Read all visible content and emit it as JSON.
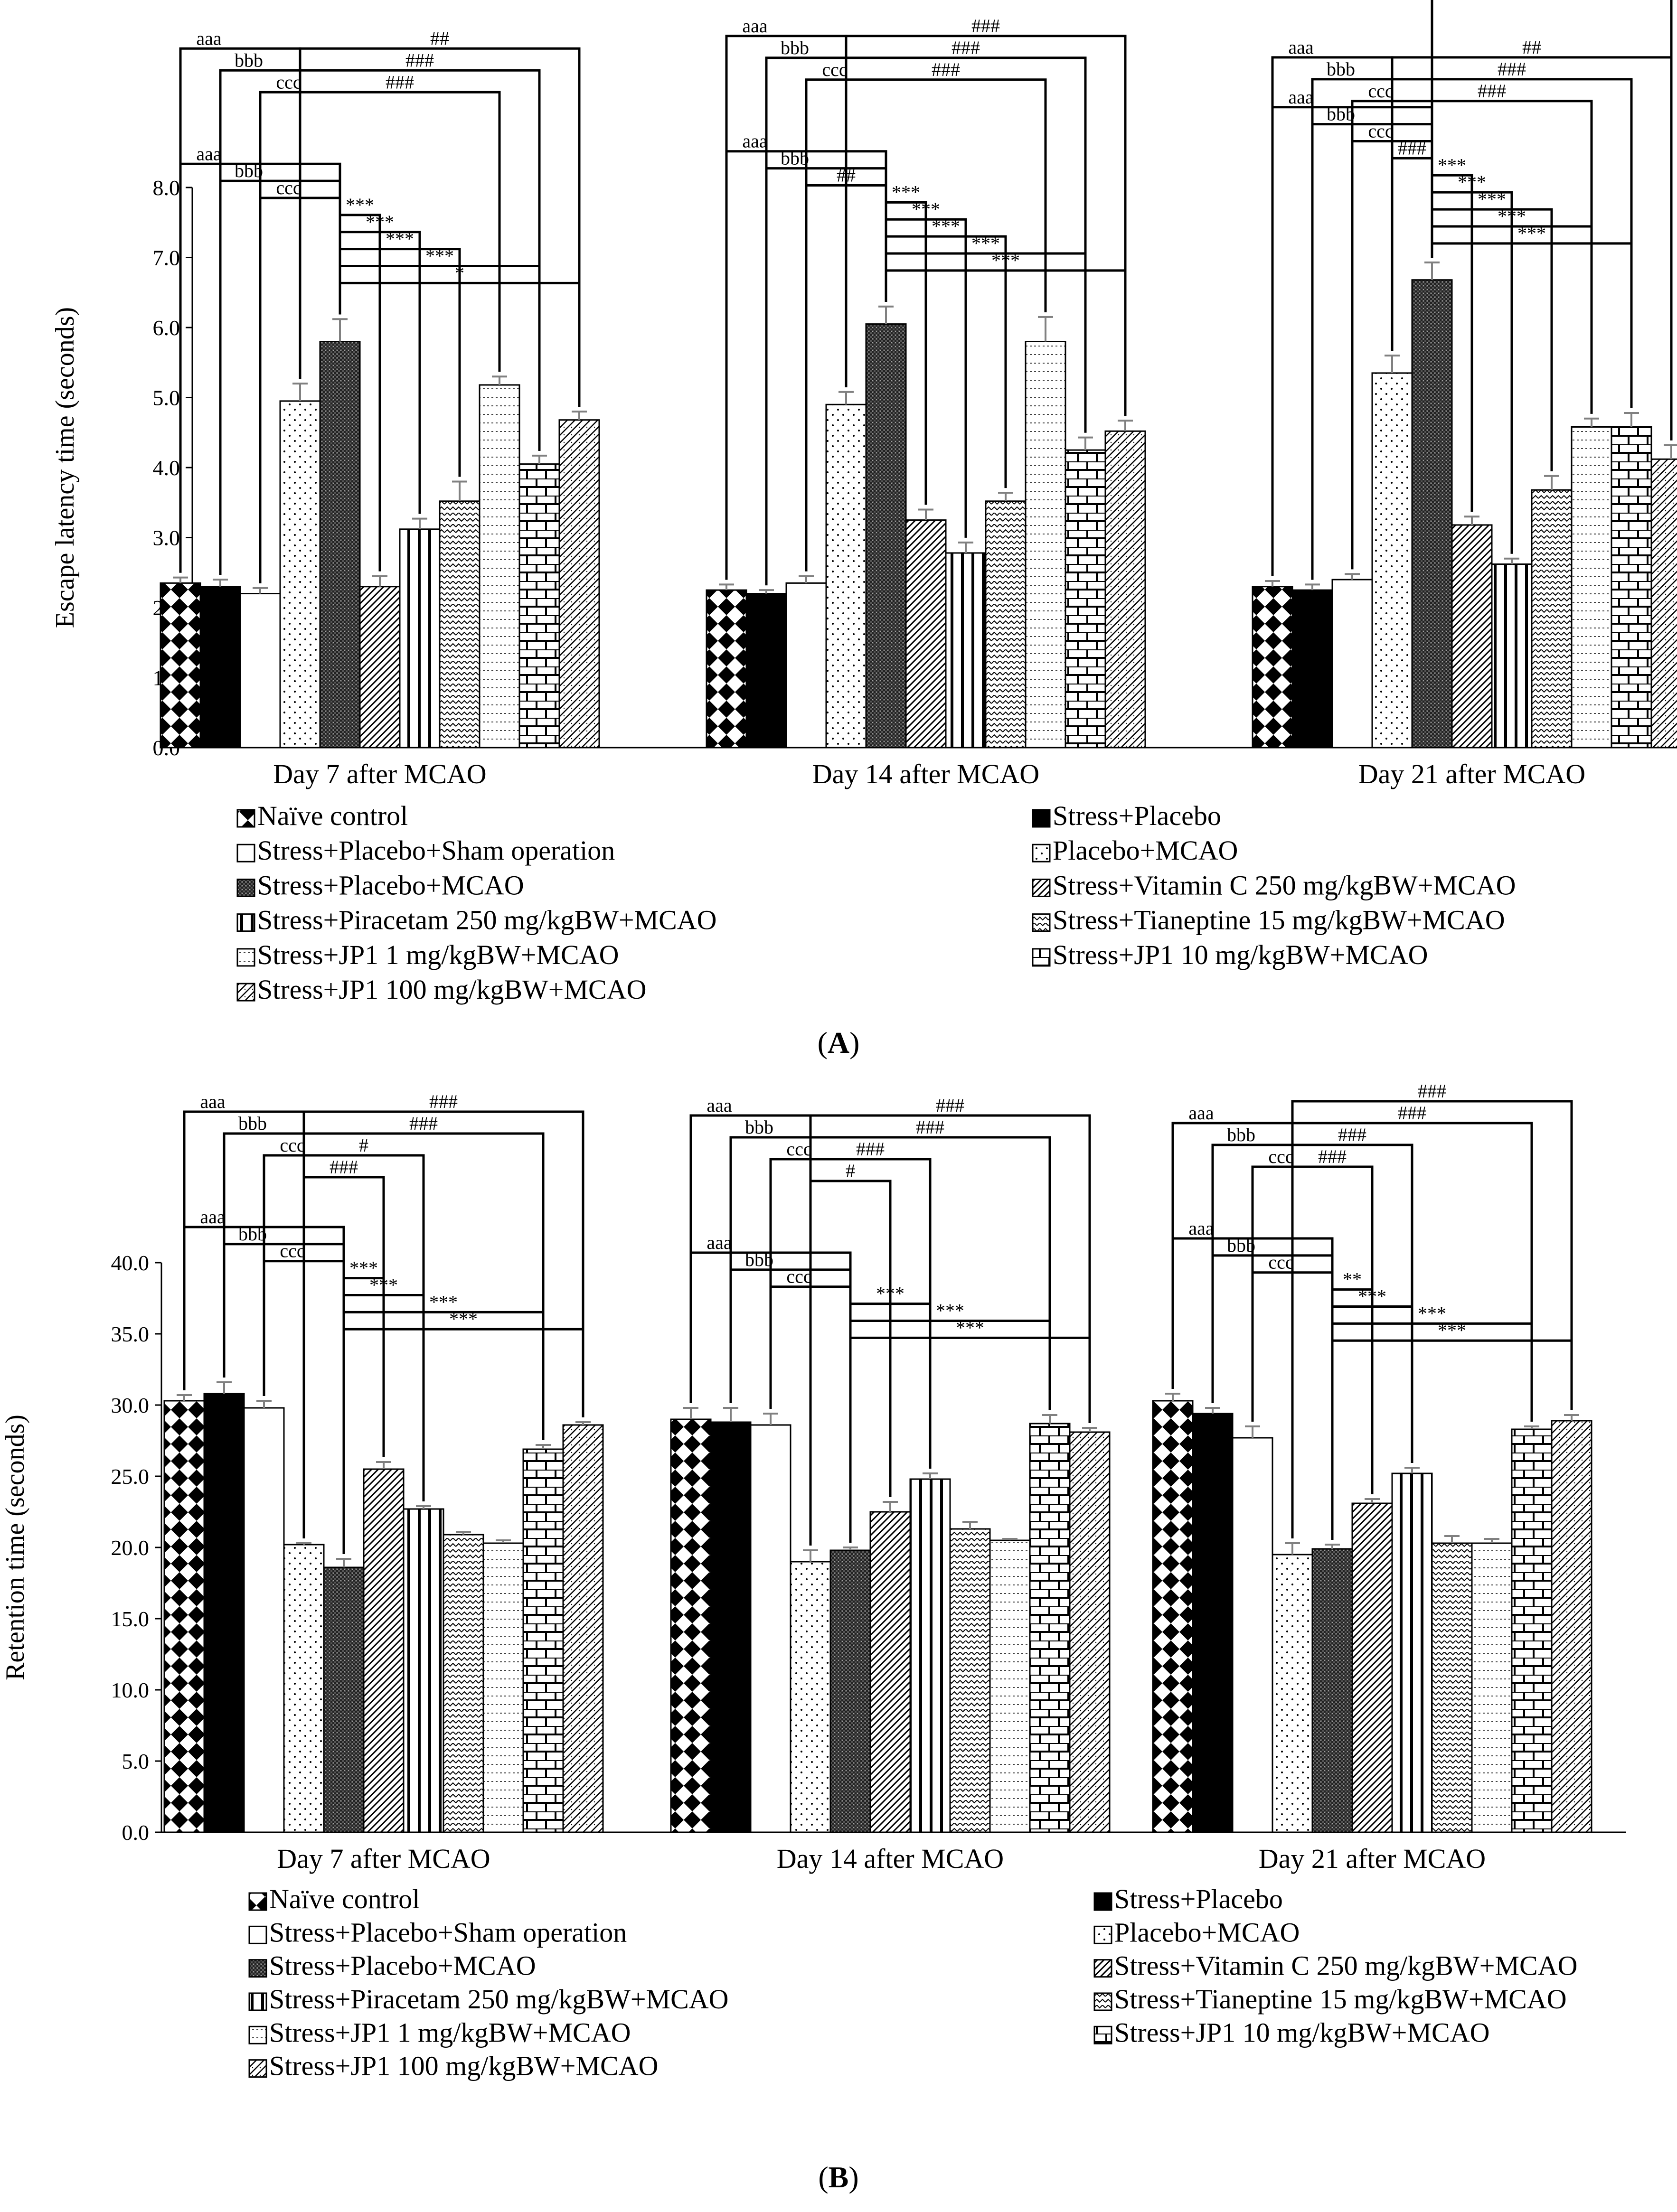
{
  "chart_data": [
    {
      "type": "bar",
      "panel_label": "A",
      "ylabel": "Escape latency time (seconds)",
      "ylim": [
        0,
        8
      ],
      "yticks": [
        "0.0",
        "1.0",
        "2.0",
        "3.0",
        "4.0",
        "5.0",
        "6.0",
        "7.0",
        "8.0"
      ],
      "categories": [
        "Day 7 after MCAO",
        "Day 14 after MCAO",
        "Day 21 after MCAO"
      ],
      "series": [
        {
          "name": "Naïve control",
          "values": [
            2.35,
            2.25,
            2.3
          ],
          "errors": [
            0.08,
            0.08,
            0.08
          ]
        },
        {
          "name": "Stress+Placebo",
          "values": [
            2.3,
            2.2,
            2.25
          ],
          "errors": [
            0.1,
            0.05,
            0.08
          ]
        },
        {
          "name": "Stress+Placebo+Sham operation",
          "values": [
            2.2,
            2.35,
            2.4
          ],
          "errors": [
            0.08,
            0.1,
            0.08
          ]
        },
        {
          "name": "Placebo+MCAO",
          "values": [
            4.95,
            4.9,
            5.35
          ],
          "errors": [
            0.25,
            0.18,
            0.25
          ]
        },
        {
          "name": "Stress+Placebo+MCAO",
          "values": [
            5.8,
            6.05,
            6.68
          ],
          "errors": [
            0.32,
            0.25,
            0.25
          ]
        },
        {
          "name": "Stress+Vitamin C 250 mg/kgBW+MCAO",
          "values": [
            2.3,
            3.25,
            3.18
          ],
          "errors": [
            0.15,
            0.15,
            0.12
          ]
        },
        {
          "name": "Stress+Piracetam 250 mg/kgBW+MCAO",
          "values": [
            3.12,
            2.78,
            2.62
          ],
          "errors": [
            0.15,
            0.15,
            0.08
          ]
        },
        {
          "name": "Stress+Tianeptine 15 mg/kgBW+MCAO",
          "values": [
            3.52,
            3.52,
            3.68
          ],
          "errors": [
            0.28,
            0.12,
            0.2
          ]
        },
        {
          "name": "Stress+JP1 1 mg/kgBW+MCAO",
          "values": [
            5.18,
            5.8,
            4.58
          ],
          "errors": [
            0.12,
            0.35,
            0.12
          ]
        },
        {
          "name": "Stress+JP1 10 mg/kgBW+MCAO",
          "values": [
            4.05,
            4.25,
            4.58
          ],
          "errors": [
            0.12,
            0.18,
            0.2
          ]
        },
        {
          "name": "Stress+JP1 100 mg/kgBW+MCAO",
          "values": [
            4.68,
            4.52,
            4.12
          ],
          "errors": [
            0.12,
            0.15,
            0.2
          ]
        }
      ],
      "annotations": [
        {
          "group": 0,
          "from": 0,
          "to": 4,
          "label": "aaa",
          "level": 0
        },
        {
          "group": 0,
          "from": 1,
          "to": 4,
          "label": "bbb",
          "level": 1
        },
        {
          "group": 0,
          "from": 2,
          "to": 4,
          "label": "ccc",
          "level": 2
        },
        {
          "group": 0,
          "from": 4,
          "to": 5,
          "label": "***",
          "level": 3
        },
        {
          "group": 0,
          "from": 4,
          "to": 6,
          "label": "***",
          "level": 4
        },
        {
          "group": 0,
          "from": 4,
          "to": 7,
          "label": "***",
          "level": 5
        },
        {
          "group": 0,
          "from": 4,
          "to": 9,
          "label": "***",
          "level": 6
        },
        {
          "group": 0,
          "from": 4,
          "to": 10,
          "label": "*",
          "level": 7
        },
        {
          "group": 0,
          "from": 0,
          "to": 3,
          "label": "aaa",
          "level": 10
        },
        {
          "group": 0,
          "from": 1,
          "to": 3,
          "label": "bbb",
          "level": 11
        },
        {
          "group": 0,
          "from": 2,
          "to": 3,
          "label": "ccc",
          "level": 12
        },
        {
          "group": 0,
          "from": 3,
          "to": 8,
          "label": "###",
          "level": 12
        },
        {
          "group": 0,
          "from": 3,
          "to": 9,
          "label": "###",
          "level": 11
        },
        {
          "group": 0,
          "from": 3,
          "to": 10,
          "label": "##",
          "level": 10
        },
        {
          "group": 1,
          "from": 0,
          "to": 4,
          "label": "aaa",
          "level": 0
        },
        {
          "group": 1,
          "from": 1,
          "to": 4,
          "label": "bbb",
          "level": 1
        },
        {
          "group": 1,
          "from": 2,
          "to": 4,
          "label": "##",
          "level": 2
        },
        {
          "group": 1,
          "from": 4,
          "to": 5,
          "label": "***",
          "level": 3
        },
        {
          "group": 1,
          "from": 4,
          "to": 6,
          "label": "***",
          "level": 4
        },
        {
          "group": 1,
          "from": 4,
          "to": 7,
          "label": "***",
          "level": 5
        },
        {
          "group": 1,
          "from": 4,
          "to": 9,
          "label": "***",
          "level": 6
        },
        {
          "group": 1,
          "from": 4,
          "to": 10,
          "label": "***",
          "level": 7
        },
        {
          "group": 1,
          "from": 0,
          "to": 3,
          "label": "aaa",
          "level": 10
        },
        {
          "group": 1,
          "from": 1,
          "to": 3,
          "label": "bbb",
          "level": 11
        },
        {
          "group": 1,
          "from": 2,
          "to": 3,
          "label": "ccc",
          "level": 12
        },
        {
          "group": 1,
          "from": 3,
          "to": 8,
          "label": "###",
          "level": 12
        },
        {
          "group": 1,
          "from": 3,
          "to": 9,
          "label": "###",
          "level": 11
        },
        {
          "group": 1,
          "from": 3,
          "to": 10,
          "label": "###",
          "level": 10
        },
        {
          "group": 2,
          "from": 0,
          "to": 4,
          "label": "aaa",
          "level": 0
        },
        {
          "group": 2,
          "from": 1,
          "to": 4,
          "label": "bbb",
          "level": 1
        },
        {
          "group": 2,
          "from": 2,
          "to": 4,
          "label": "ccc",
          "level": 2
        },
        {
          "group": 2,
          "from": 3,
          "to": 4,
          "label": "###",
          "level": 3
        },
        {
          "group": 2,
          "from": 4,
          "to": 5,
          "label": "***",
          "level": 4
        },
        {
          "group": 2,
          "from": 4,
          "to": 6,
          "label": "***",
          "level": 5
        },
        {
          "group": 2,
          "from": 4,
          "to": 7,
          "label": "***",
          "level": 6
        },
        {
          "group": 2,
          "from": 4,
          "to": 8,
          "label": "***",
          "level": 7
        },
        {
          "group": 2,
          "from": 4,
          "to": 9,
          "label": "***",
          "level": 8
        },
        {
          "group": 2,
          "from": 4,
          "to": 10,
          "label": "***",
          "level": 9
        },
        {
          "group": 2,
          "from": 0,
          "to": 3,
          "label": "aaa",
          "level": 13
        },
        {
          "group": 2,
          "from": 1,
          "to": 3,
          "label": "bbb",
          "level": 14
        },
        {
          "group": 2,
          "from": 2,
          "to": 3,
          "label": "ccc",
          "level": 15
        },
        {
          "group": 2,
          "from": 3,
          "to": 8,
          "label": "###",
          "level": 15
        },
        {
          "group": 2,
          "from": 3,
          "to": 9,
          "label": "###",
          "level": 14
        },
        {
          "group": 2,
          "from": 3,
          "to": 10,
          "label": "##",
          "level": 13
        }
      ]
    },
    {
      "type": "bar",
      "panel_label": "B",
      "ylabel": "Retention time (seconds)",
      "ylim": [
        0,
        40
      ],
      "yticks": [
        "0.0",
        "5.0",
        "10.0",
        "15.0",
        "20.0",
        "25.0",
        "30.0",
        "35.0",
        "40.0"
      ],
      "categories": [
        "Day 7 after MCAO",
        "Day 14 after MCAO",
        "Day 21 after MCAO"
      ],
      "series": [
        {
          "name": "Naïve control",
          "values": [
            30.3,
            29.0,
            30.3
          ],
          "errors": [
            0.4,
            0.8,
            0.5
          ]
        },
        {
          "name": "Stress+Placebo",
          "values": [
            30.8,
            28.8,
            29.4
          ],
          "errors": [
            0.8,
            1.0,
            0.4
          ]
        },
        {
          "name": "Stress+Placebo+Sham operation",
          "values": [
            29.8,
            28.6,
            27.7
          ],
          "errors": [
            0.5,
            0.8,
            0.8
          ]
        },
        {
          "name": "Placebo+MCAO",
          "values": [
            20.2,
            19.0,
            19.5
          ],
          "errors": [
            0.1,
            0.8,
            0.8
          ]
        },
        {
          "name": "Stress+Placebo+MCAO",
          "values": [
            18.6,
            19.8,
            19.9
          ],
          "errors": [
            0.6,
            0.2,
            0.3
          ]
        },
        {
          "name": "Stress+Vitamin C 250 mg/kgBW+MCAO",
          "values": [
            25.5,
            22.5,
            23.1
          ],
          "errors": [
            0.5,
            0.7,
            0.3
          ]
        },
        {
          "name": "Stress+Piracetam 250 mg/kgBW+MCAO",
          "values": [
            22.7,
            24.8,
            25.2
          ],
          "errors": [
            0.2,
            0.4,
            0.4
          ]
        },
        {
          "name": "Stress+Tianeptine 15 mg/kgBW+MCAO",
          "values": [
            20.9,
            21.3,
            20.3
          ],
          "errors": [
            0.2,
            0.5,
            0.5
          ]
        },
        {
          "name": "Stress+JP1 1 mg/kgBW+MCAO",
          "values": [
            20.3,
            20.5,
            20.3
          ],
          "errors": [
            0.2,
            0.1,
            0.3
          ]
        },
        {
          "name": "Stress+JP1 10 mg/kgBW+MCAO",
          "values": [
            26.9,
            28.7,
            28.3
          ],
          "errors": [
            0.3,
            0.6,
            0.2
          ]
        },
        {
          "name": "Stress+JP1 100 mg/kgBW+MCAO",
          "values": [
            28.6,
            28.1,
            28.9
          ],
          "errors": [
            0.2,
            0.3,
            0.4
          ]
        }
      ],
      "annotations": [
        {
          "group": 0,
          "from": 0,
          "to": 4,
          "label": "aaa",
          "level": 0
        },
        {
          "group": 0,
          "from": 1,
          "to": 4,
          "label": "bbb",
          "level": 1
        },
        {
          "group": 0,
          "from": 2,
          "to": 4,
          "label": "ccc",
          "level": 2
        },
        {
          "group": 0,
          "from": 4,
          "to": 5,
          "label": "***",
          "level": 3
        },
        {
          "group": 0,
          "from": 4,
          "to": 6,
          "label": "***",
          "level": 4
        },
        {
          "group": 0,
          "from": 4,
          "to": 9,
          "label": "***",
          "level": 5
        },
        {
          "group": 0,
          "from": 4,
          "to": 10,
          "label": "***",
          "level": 6
        },
        {
          "group": 0,
          "from": 0,
          "to": 3,
          "label": "aaa",
          "level": 10
        },
        {
          "group": 0,
          "from": 1,
          "to": 3,
          "label": "bbb",
          "level": 11
        },
        {
          "group": 0,
          "from": 2,
          "to": 3,
          "label": "ccc",
          "level": 12
        },
        {
          "group": 0,
          "from": 3,
          "to": 5,
          "label": "###",
          "level": 13
        },
        {
          "group": 0,
          "from": 3,
          "to": 6,
          "label": "#",
          "level": 12
        },
        {
          "group": 0,
          "from": 3,
          "to": 9,
          "label": "###",
          "level": 11
        },
        {
          "group": 0,
          "from": 3,
          "to": 10,
          "label": "###",
          "level": 10
        },
        {
          "group": 1,
          "from": 0,
          "to": 4,
          "label": "aaa",
          "level": 0
        },
        {
          "group": 1,
          "from": 1,
          "to": 4,
          "label": "bbb",
          "level": 1
        },
        {
          "group": 1,
          "from": 2,
          "to": 4,
          "label": "ccc",
          "level": 2
        },
        {
          "group": 1,
          "from": 4,
          "to": 6,
          "label": "***",
          "level": 3
        },
        {
          "group": 1,
          "from": 4,
          "to": 9,
          "label": "***",
          "level": 4
        },
        {
          "group": 1,
          "from": 4,
          "to": 10,
          "label": "***",
          "level": 5
        },
        {
          "group": 1,
          "from": 0,
          "to": 3,
          "label": "aaa",
          "level": 9
        },
        {
          "group": 1,
          "from": 1,
          "to": 3,
          "label": "bbb",
          "level": 10
        },
        {
          "group": 1,
          "from": 2,
          "to": 3,
          "label": "ccc",
          "level": 11
        },
        {
          "group": 1,
          "from": 3,
          "to": 5,
          "label": "#",
          "level": 12
        },
        {
          "group": 1,
          "from": 3,
          "to": 6,
          "label": "###",
          "level": 11
        },
        {
          "group": 1,
          "from": 3,
          "to": 9,
          "label": "###",
          "level": 10
        },
        {
          "group": 1,
          "from": 3,
          "to": 10,
          "label": "###",
          "level": 9
        },
        {
          "group": 2,
          "from": 0,
          "to": 4,
          "label": "aaa",
          "level": 0
        },
        {
          "group": 2,
          "from": 1,
          "to": 4,
          "label": "bbb",
          "level": 1
        },
        {
          "group": 2,
          "from": 2,
          "to": 4,
          "label": "ccc",
          "level": 2
        },
        {
          "group": 2,
          "from": 4,
          "to": 5,
          "label": "**",
          "level": 3
        },
        {
          "group": 2,
          "from": 4,
          "to": 6,
          "label": "***",
          "level": 4
        },
        {
          "group": 2,
          "from": 4,
          "to": 9,
          "label": "***",
          "level": 5
        },
        {
          "group": 2,
          "from": 4,
          "to": 10,
          "label": "***",
          "level": 6
        },
        {
          "group": 2,
          "from": 0,
          "to": 3,
          "label": "aaa",
          "level": 10
        },
        {
          "group": 2,
          "from": 1,
          "to": 3,
          "label": "bbb",
          "level": 11
        },
        {
          "group": 2,
          "from": 2,
          "to": 3,
          "label": "ccc",
          "level": 12
        },
        {
          "group": 2,
          "from": 3,
          "to": 5,
          "label": "###",
          "level": 12
        },
        {
          "group": 2,
          "from": 3,
          "to": 6,
          "label": "###",
          "level": 11
        },
        {
          "group": 2,
          "from": 3,
          "to": 9,
          "label": "###",
          "level": 10
        },
        {
          "group": 2,
          "from": 3,
          "to": 10,
          "label": "###",
          "level": 9
        }
      ]
    }
  ]
}
